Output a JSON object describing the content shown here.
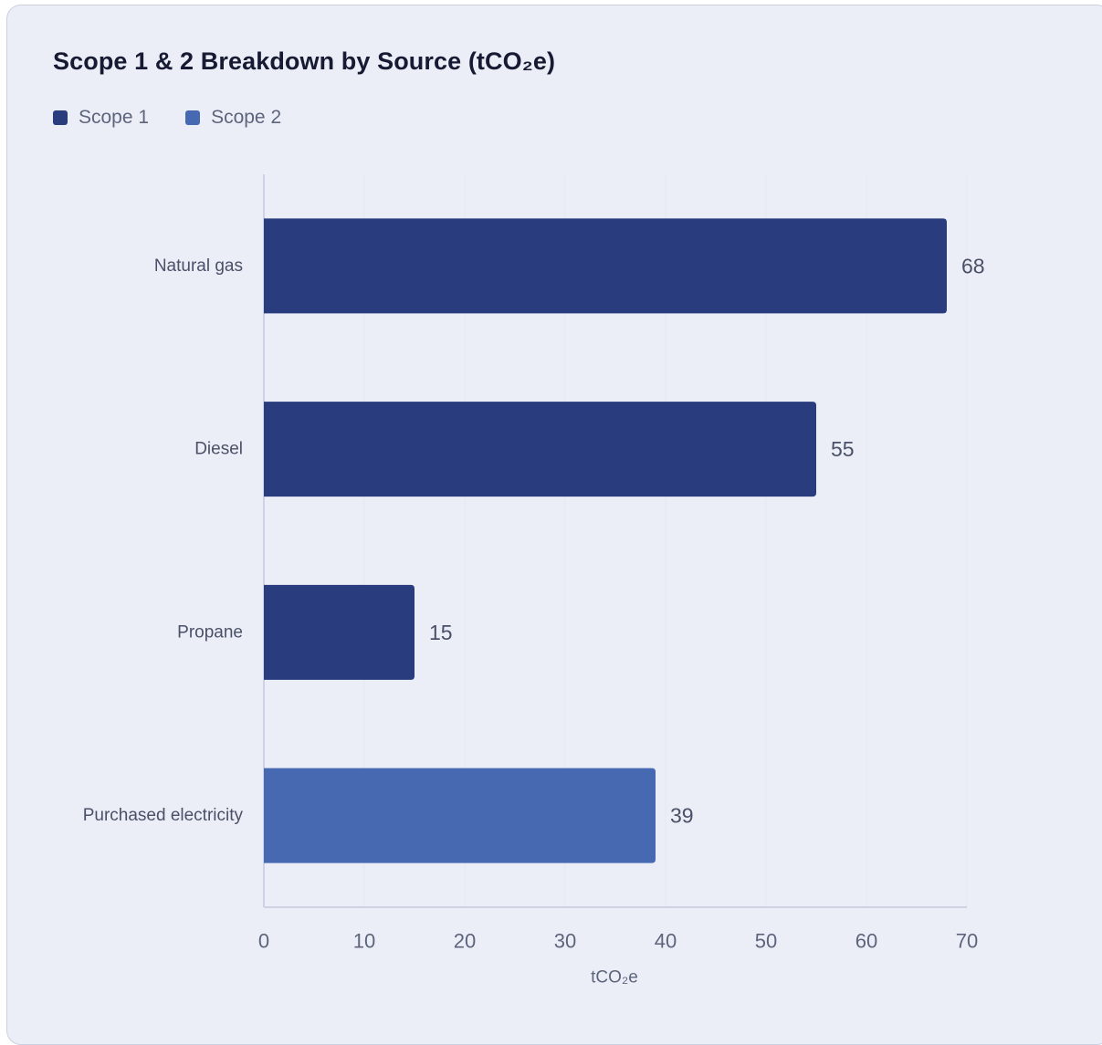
{
  "chart_data": {
    "type": "bar",
    "orientation": "horizontal",
    "title": "Scope 1 & 2 Breakdown by Source (tCO₂e)",
    "xlabel": "tCO₂e",
    "ylabel": "",
    "xlim": [
      0,
      70
    ],
    "xticks": [
      "0",
      "10",
      "20",
      "30",
      "40",
      "50",
      "60",
      "70"
    ],
    "grid": "vertical",
    "legend_position": "top-left",
    "series": [
      {
        "name": "Scope 1",
        "color": "#283c7e"
      },
      {
        "name": "Scope 2",
        "color": "#4669b2"
      }
    ],
    "categories": [
      "Natural gas",
      "Diesel",
      "Propane",
      "Purchased electricity"
    ],
    "values": [
      68,
      55,
      15,
      39
    ],
    "value_labels": [
      "68",
      "55",
      "15",
      "39"
    ],
    "bar_series": [
      "Scope 1",
      "Scope 1",
      "Scope 1",
      "Scope 2"
    ]
  },
  "colors": {
    "card_background": "#eceef7",
    "card_border": "#cbd0e0",
    "axis_line": "#c5c9dd",
    "gridline": "#e3e6f1"
  }
}
